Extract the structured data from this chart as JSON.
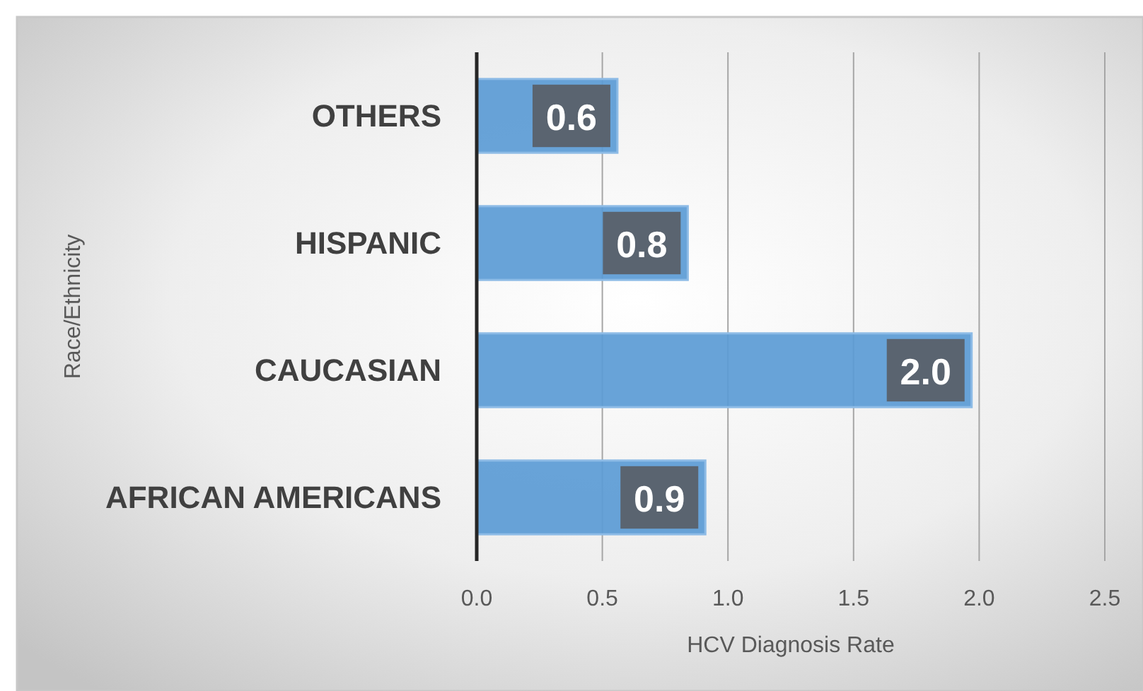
{
  "chart_data": {
    "type": "bar",
    "orientation": "horizontal",
    "categories": [
      "OTHERS",
      "HISPANIC",
      "CAUCASIAN",
      "AFRICAN AMERICANS"
    ],
    "values": [
      0.56,
      0.84,
      1.97,
      0.91
    ],
    "value_labels": [
      "0.6",
      "0.8",
      "2.0",
      "0.9"
    ],
    "color": "#5b9bd5",
    "xlabel": "HCV Diagnosis Rate",
    "ylabel": "Race/Ethnicity",
    "xlim": [
      0,
      2.5
    ],
    "xticks": [
      {
        "value": 0,
        "label": "0.0"
      },
      {
        "value": 0.5,
        "label": "0.5"
      },
      {
        "value": 1,
        "label": "1.0"
      },
      {
        "value": 1.5,
        "label": "1.5"
      },
      {
        "value": 2,
        "label": "2.0"
      },
      {
        "value": 2.5,
        "label": "2.5"
      }
    ],
    "grid": "x"
  }
}
